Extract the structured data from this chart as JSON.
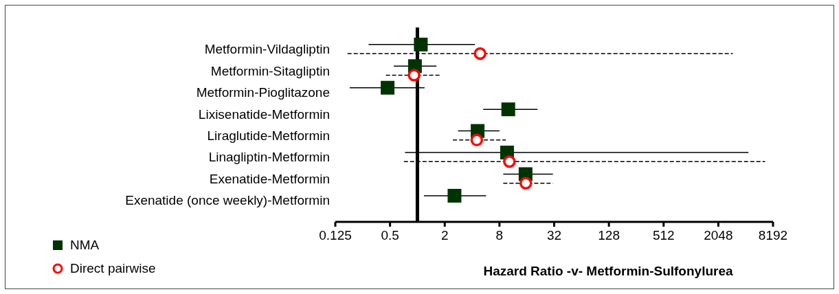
{
  "chart_data": {
    "type": "scatter",
    "orientation": "horizontal",
    "log": "x",
    "xlabel": "Hazard Ratio -v- Metformin-Sulfonylurea",
    "categories": [
      "Metformin-Vildagliptin",
      "Metformin-Sitagliptin",
      "Metformin-Pioglitazone",
      "Lixisenatide-Metformin",
      "Liraglutide-Metformin",
      "Linagliptin-Metformin",
      "Exenatide-Metformin",
      "Exenatide (once weekly)-Metformin"
    ],
    "series": [
      {
        "name": "NMA",
        "color": "#003300",
        "marker": "square",
        "line_style": "solid",
        "values": [
          1.09,
          0.94,
          0.47,
          10,
          4.6,
          9.7,
          15.5,
          2.56
        ],
        "errors": [
          [
            0.29,
            4.3
          ],
          [
            0.55,
            1.62
          ],
          [
            0.18,
            1.2
          ],
          [
            5.3,
            21
          ],
          [
            2.8,
            8
          ],
          [
            0.73,
            4400
          ],
          [
            8.8,
            31
          ],
          [
            1.18,
            5.7
          ]
        ]
      },
      {
        "name": "Direct pairwise",
        "color": "#ff0000",
        "marker": "circle",
        "line_style": "dashed",
        "values": [
          4.9,
          0.92,
          null,
          null,
          4.5,
          10.3,
          15.6,
          null
        ],
        "errors": [
          [
            0.17,
            2960
          ],
          [
            0.45,
            1.82
          ],
          null,
          null,
          [
            2.46,
            9.4
          ],
          [
            0.71,
            6700
          ],
          [
            8.8,
            31
          ],
          null
        ]
      }
    ],
    "xlim": [
      0.125,
      8192
    ],
    "xticks": [
      0.125,
      0.5,
      2,
      8,
      32,
      128,
      512,
      2048,
      8192
    ],
    "ref_lines": [
      {
        "axis": "x",
        "value": 1,
        "color": "#000000"
      }
    ],
    "legend": "bottom left"
  }
}
